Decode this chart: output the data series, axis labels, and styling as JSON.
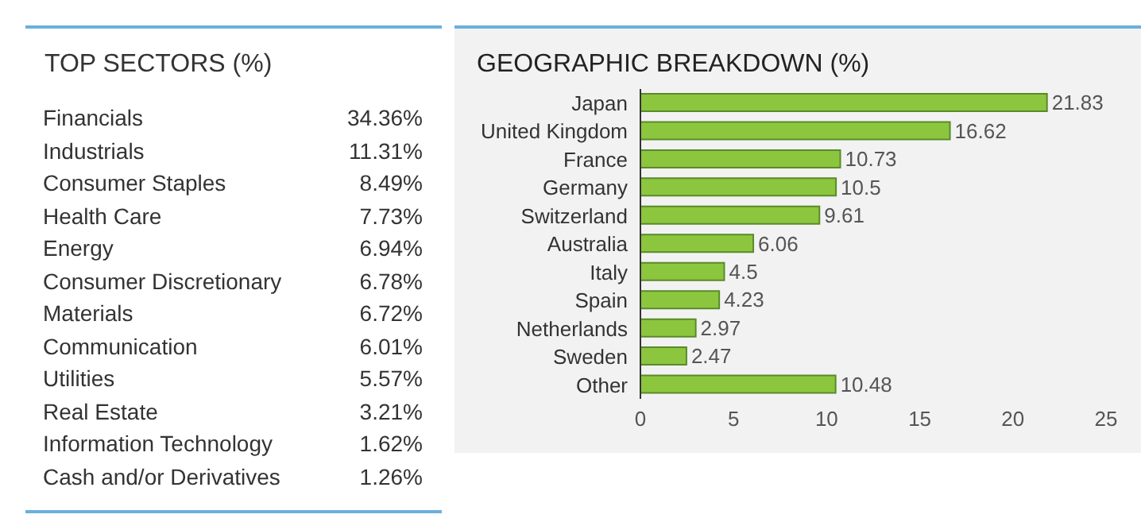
{
  "chart_data": [
    {
      "type": "other",
      "title": "TOP SECTORS (%)",
      "categories": [
        "Financials",
        "Industrials",
        "Consumer Staples",
        "Health Care",
        "Energy",
        "Consumer Discretionary",
        "Materials",
        "Communication",
        "Utilities",
        "Real Estate",
        "Information Technology",
        "Cash and/or Derivatives"
      ],
      "values": [
        34.36,
        11.31,
        8.49,
        7.73,
        6.94,
        6.78,
        6.72,
        6.01,
        5.57,
        3.21,
        1.62,
        1.26
      ],
      "value_labels": [
        "34.36%",
        "11.31%",
        "8.49%",
        "7.73%",
        "6.94%",
        "6.78%",
        "6.72%",
        "6.01%",
        "5.57%",
        "3.21%",
        "1.62%",
        "1.26%"
      ]
    },
    {
      "type": "bar",
      "orientation": "horizontal",
      "title": "GEOGRAPHIC BREAKDOWN (%)",
      "categories": [
        "Japan",
        "United Kingdom",
        "France",
        "Germany",
        "Switzerland",
        "Australia",
        "Italy",
        "Spain",
        "Netherlands",
        "Sweden",
        "Other"
      ],
      "values": [
        21.83,
        16.62,
        10.73,
        10.5,
        9.61,
        6.06,
        4.5,
        4.23,
        2.97,
        2.47,
        10.48
      ],
      "color": "#8cc63e",
      "xlim": [
        0,
        25
      ],
      "xticks": [
        0,
        5,
        10,
        15,
        20,
        25
      ],
      "data_labels": true,
      "grid": false,
      "legend": false
    }
  ]
}
